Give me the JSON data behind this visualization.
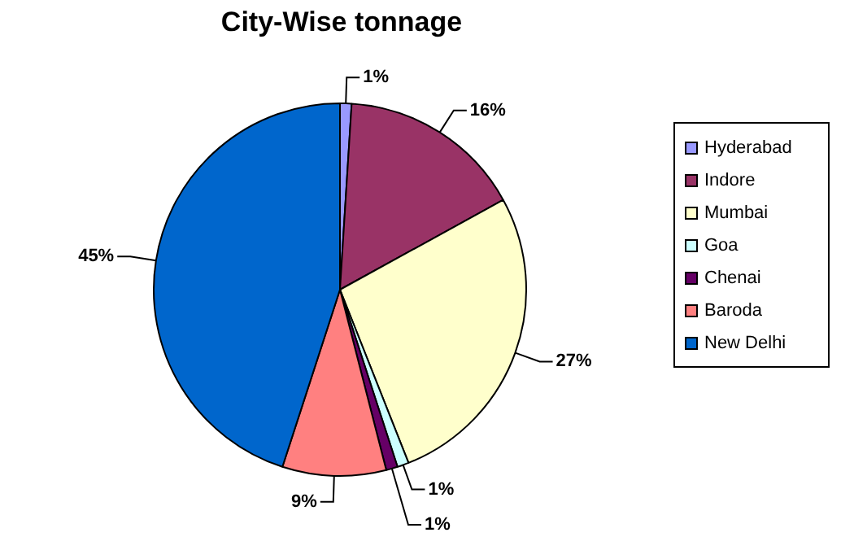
{
  "chart_data": {
    "type": "pie",
    "title": "City-Wise tonnage",
    "categories": [
      "Hyderabad",
      "Indore",
      "Mumbai",
      "Goa",
      "Chenai",
      "Baroda",
      "New Delhi"
    ],
    "values": [
      1,
      16,
      27,
      1,
      1,
      9,
      45
    ],
    "colors": [
      "#9999ff",
      "#993366",
      "#ffffcc",
      "#ccffff",
      "#660066",
      "#ff8080",
      "#0066cc"
    ],
    "value_labels": [
      "1%",
      "16%",
      "27%",
      "1%",
      "1%",
      "9%",
      "45%"
    ],
    "legend": "right"
  }
}
